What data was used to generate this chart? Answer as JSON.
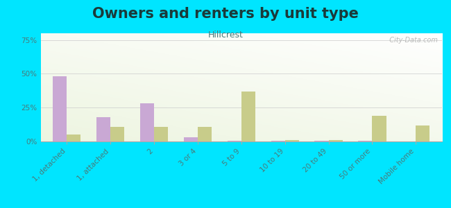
{
  "title": "Owners and renters by unit type",
  "subtitle": "Hillcrest",
  "categories": [
    "1, detached",
    "1, attached",
    "2",
    "3 or 4",
    "5 to 9",
    "10 to 19",
    "20 to 49",
    "50 or more",
    "Mobile home"
  ],
  "owner_values": [
    48,
    18,
    28,
    3,
    0.5,
    0.5,
    0.5,
    0.5,
    0
  ],
  "renter_values": [
    5,
    11,
    11,
    11,
    37,
    1,
    1,
    19,
    12
  ],
  "owner_color": "#c9a8d4",
  "renter_color": "#c8cc8a",
  "outer_bg": "#00e5ff",
  "ylim": [
    0,
    80
  ],
  "yticks": [
    0,
    25,
    50,
    75
  ],
  "ytick_labels": [
    "0%",
    "25%",
    "50%",
    "75%"
  ],
  "bar_width": 0.32,
  "title_fontsize": 15,
  "subtitle_fontsize": 9,
  "title_color": "#1a3a3a",
  "subtitle_color": "#4a7a7a",
  "watermark": "  City-Data.com"
}
